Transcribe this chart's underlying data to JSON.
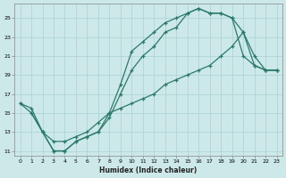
{
  "xlabel": "Humidex (Indice chaleur)",
  "bg_color": "#cce8e8",
  "grid_color": "#b0d4d4",
  "line_color": "#2a7a6a",
  "xlim": [
    -0.5,
    23.5
  ],
  "ylim": [
    10.5,
    26.5
  ],
  "xticks": [
    0,
    1,
    2,
    3,
    4,
    5,
    6,
    7,
    8,
    9,
    10,
    11,
    12,
    13,
    14,
    15,
    16,
    17,
    18,
    19,
    20,
    21,
    22,
    23
  ],
  "yticks": [
    11,
    13,
    15,
    17,
    19,
    21,
    23,
    25
  ],
  "curve1_x": [
    0,
    1,
    2,
    3,
    4,
    5,
    6,
    7,
    8,
    9,
    10,
    11,
    12,
    13,
    14,
    15,
    16,
    17,
    18,
    19,
    20,
    21,
    22,
    23
  ],
  "curve1_y": [
    16,
    15,
    13,
    11,
    11,
    12,
    12.5,
    13,
    14.5,
    17,
    19.5,
    21,
    22,
    23.5,
    24,
    25.5,
    26,
    25.5,
    25.5,
    25,
    21,
    20,
    19.5,
    19.5
  ],
  "curve2_x": [
    1,
    2,
    3,
    4,
    5,
    6,
    7,
    8,
    9,
    10,
    11,
    12,
    13,
    14,
    15,
    16,
    17,
    18,
    19,
    20,
    21,
    22,
    23
  ],
  "curve2_y": [
    15,
    13,
    11,
    11,
    12,
    12.5,
    13,
    15,
    18,
    21.5,
    22.5,
    23.5,
    24.5,
    25,
    25.5,
    26,
    25.5,
    25.5,
    25,
    23.5,
    21,
    19.5,
    19.5
  ],
  "curve3_x": [
    0,
    1,
    2,
    3,
    4,
    5,
    6,
    7,
    8,
    9,
    10,
    11,
    12,
    13,
    14,
    15,
    16,
    17,
    18,
    19,
    20,
    21,
    22,
    23
  ],
  "curve3_y": [
    16,
    15.5,
    13,
    12,
    12,
    12.5,
    13,
    14,
    15,
    15.5,
    16,
    16.5,
    17,
    18,
    18.5,
    19,
    19.5,
    20,
    21,
    22,
    23.5,
    20,
    19.5,
    19.5
  ]
}
